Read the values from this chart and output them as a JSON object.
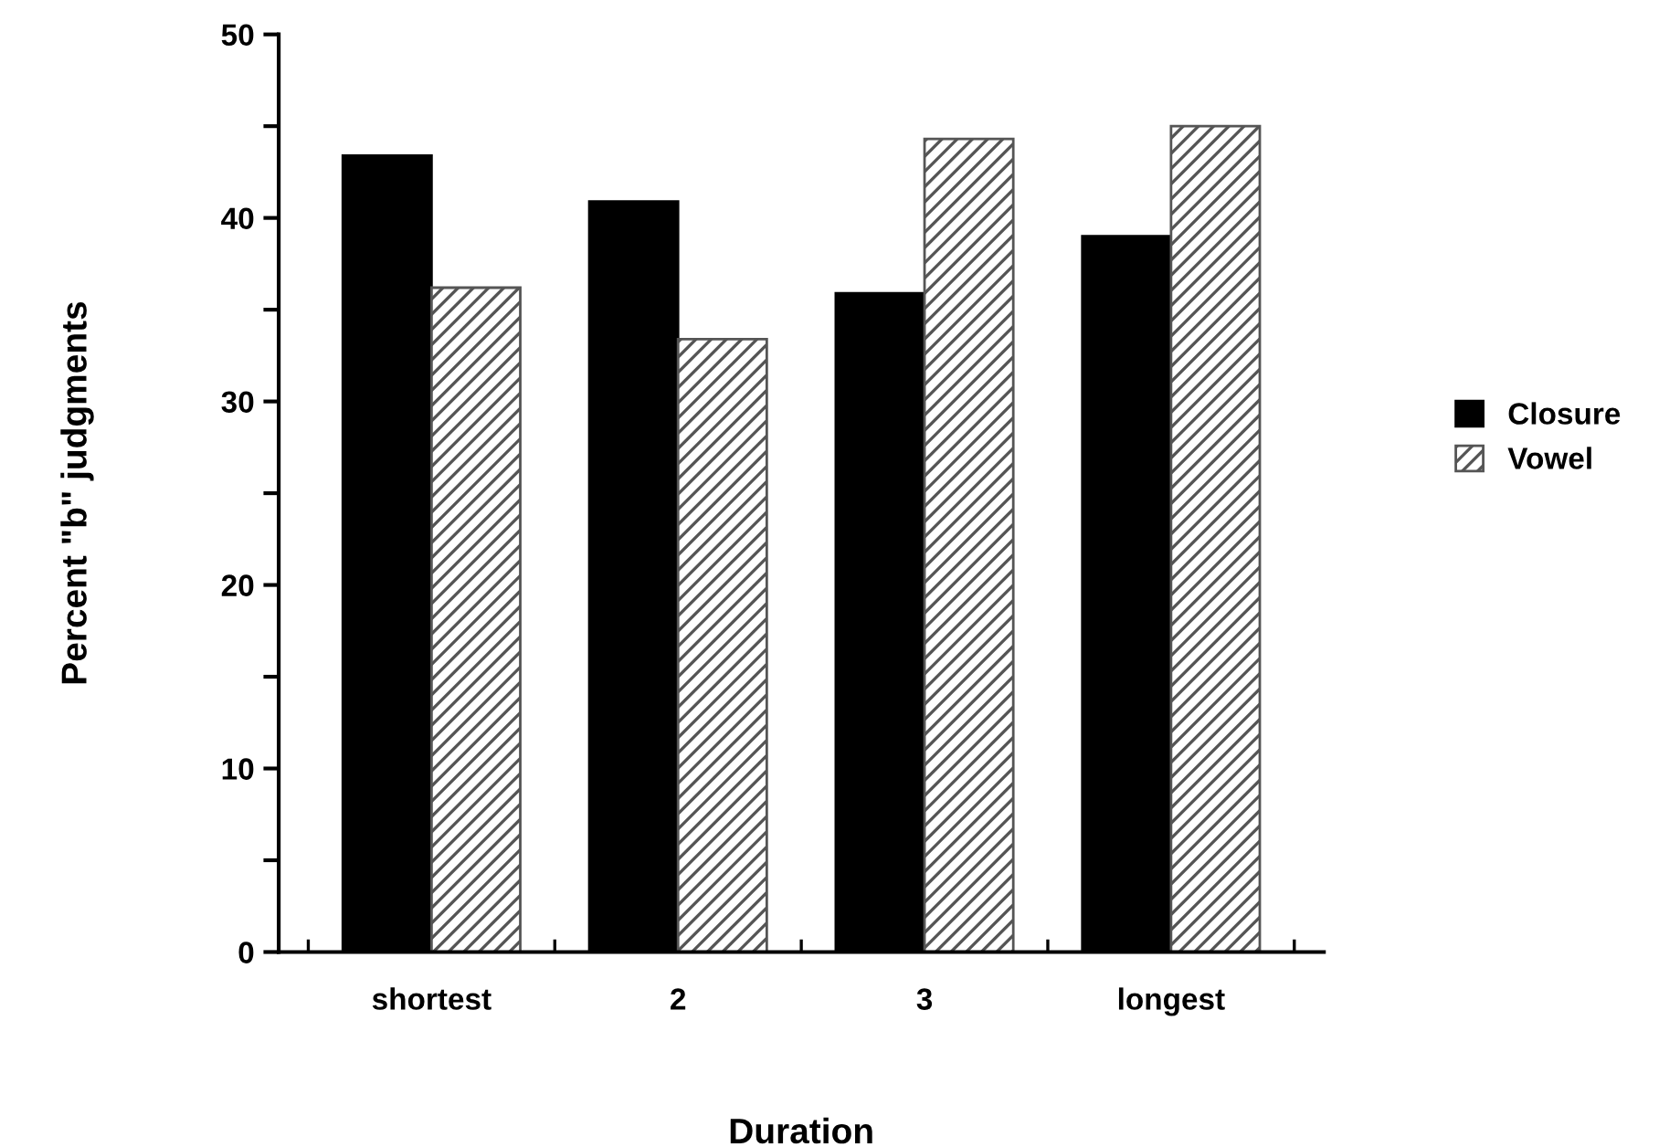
{
  "chart_data": {
    "type": "bar",
    "xlabel": "Duration",
    "ylabel": "Percent \"b\" judgments",
    "categories": [
      "shortest",
      "2",
      "3",
      "longest"
    ],
    "series": [
      {
        "name": "Closure",
        "color": "#000000",
        "values": [
          43.4,
          40.9,
          35.9,
          39.0
        ]
      },
      {
        "name": "Vowel",
        "color": "#555555",
        "values": [
          36.2,
          33.4,
          44.3,
          45.0
        ]
      }
    ],
    "ylim": [
      0,
      50
    ],
    "yticks": [
      0,
      {
        "value": 5,
        "label": null
      },
      10,
      {
        "value": 15,
        "label": null
      },
      20,
      {
        "value": 25,
        "label": null
      },
      30,
      {
        "value": 35,
        "label": null
      },
      40,
      {
        "value": 45,
        "label": null
      },
      50
    ],
    "grid": false,
    "legend": "right"
  }
}
